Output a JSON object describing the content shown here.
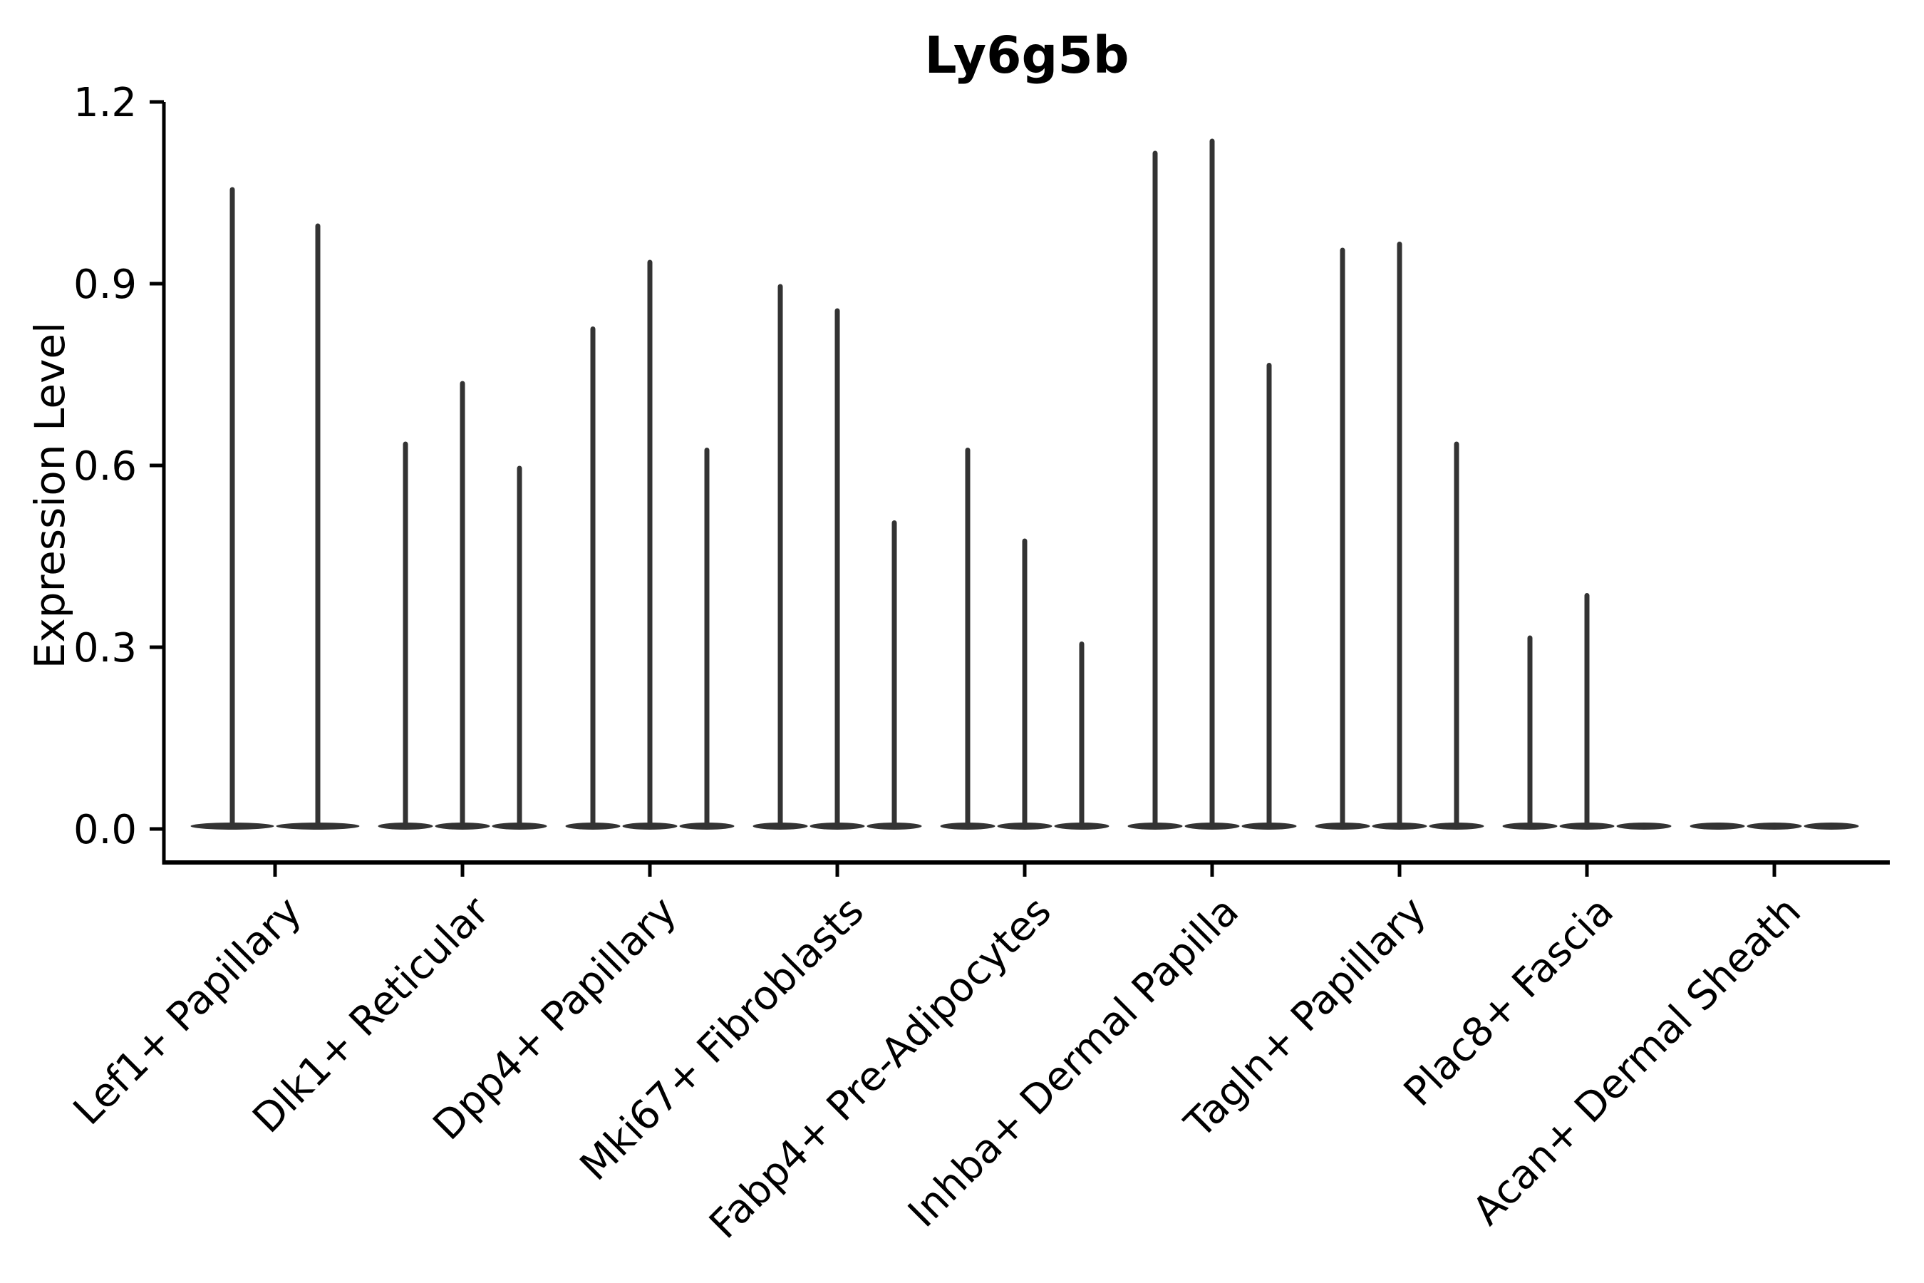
{
  "figure": {
    "background_color": "#ffffff"
  },
  "chart_data": {
    "type": "violin",
    "title": "Ly6g5b",
    "ylabel": "Expression Level",
    "xlabel": "",
    "grid": false,
    "legend": "none",
    "ylim": [
      -0.055,
      1.2
    ],
    "ytick_values": [
      0.0,
      0.3,
      0.6,
      0.9,
      1.2
    ],
    "ytick_labels": [
      "0.0",
      "0.3",
      "0.6",
      "0.9",
      "1.2"
    ],
    "violin_fill_color": "#333333",
    "axis_color": "#000000",
    "categories": [
      "Lef1+ Papillary",
      "Dlk1+ Reticular",
      "Dpp4+ Papillary",
      "Mki67+ Fibroblasts",
      "Fabp4+ Pre-Adipocytes",
      "Inhba+ Dermal Papilla",
      "Tagln+ Papillary",
      "Plac8+ Fascia",
      "Acan+ Dermal Sheath"
    ],
    "groups": [
      {
        "category": "Lef1+ Papillary",
        "violin_maxima": [
          1.06,
          1.0
        ]
      },
      {
        "category": "Dlk1+ Reticular",
        "violin_maxima": [
          0.64,
          0.74,
          0.6
        ]
      },
      {
        "category": "Dpp4+ Papillary",
        "violin_maxima": [
          0.83,
          0.94,
          0.63
        ]
      },
      {
        "category": "Mki67+ Fibroblasts",
        "violin_maxima": [
          0.9,
          0.86,
          0.51
        ]
      },
      {
        "category": "Fabp4+ Pre-Adipocytes",
        "violin_maxima": [
          0.63,
          0.48,
          0.31
        ]
      },
      {
        "category": "Inhba+ Dermal Papilla",
        "violin_maxima": [
          1.12,
          1.14,
          0.77
        ]
      },
      {
        "category": "Tagln+ Papillary",
        "violin_maxima": [
          0.96,
          0.97,
          0.64
        ]
      },
      {
        "category": "Plac8+ Fascia",
        "violin_maxima": [
          0.32,
          0.39,
          0.0
        ]
      },
      {
        "category": "Acan+ Dermal Sheath",
        "violin_maxima": [
          0.0,
          0.0,
          0.0
        ]
      }
    ]
  }
}
